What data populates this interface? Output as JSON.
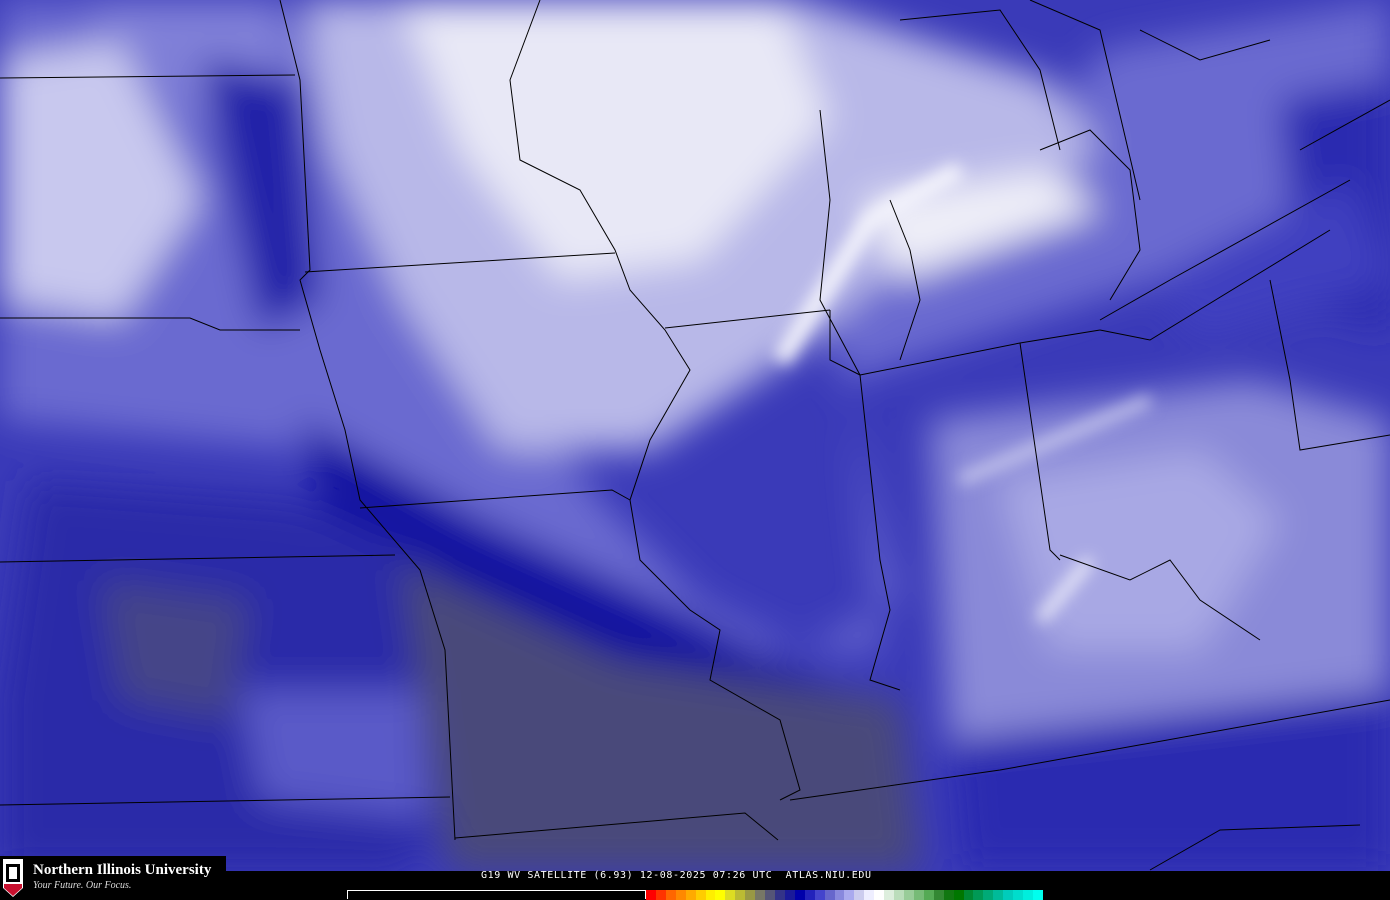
{
  "caption": {
    "product": "G19 WV SATELLITE (6.93)",
    "date": "12-08-2025",
    "time": "07:26 UTC",
    "site": "ATLAS.NIU.EDU"
  },
  "logo": {
    "name": "Northern Illinois University",
    "tagline": "Your Future. Our Focus.",
    "badge": "NIU"
  },
  "colorbar": {
    "colors": [
      "#ff0000",
      "#ff3300",
      "#ff6600",
      "#ff8800",
      "#ffaa00",
      "#ffcc00",
      "#ffee00",
      "#ffff00",
      "#dddd22",
      "#bbbb33",
      "#999944",
      "#777766",
      "#555577",
      "#333388",
      "#1a1a99",
      "#0000aa",
      "#2222bb",
      "#4444cc",
      "#6666cc",
      "#8888dd",
      "#aaaaee",
      "#ccccee",
      "#eeeeff",
      "#ffffff",
      "#ddeedd",
      "#bbddbb",
      "#99cc99",
      "#77bb77",
      "#55aa55",
      "#338833",
      "#117711",
      "#007700",
      "#008833",
      "#009955",
      "#00aa77",
      "#00bb99",
      "#00ccbb",
      "#00ddcc",
      "#00eedd",
      "#00ffee"
    ]
  },
  "colors": {
    "dry": "#555577",
    "deep_blue": "#1a1aa0",
    "mid_blue": "#5a5ac8",
    "light": "#c8c8ee",
    "moist": "#f0f0f8"
  }
}
